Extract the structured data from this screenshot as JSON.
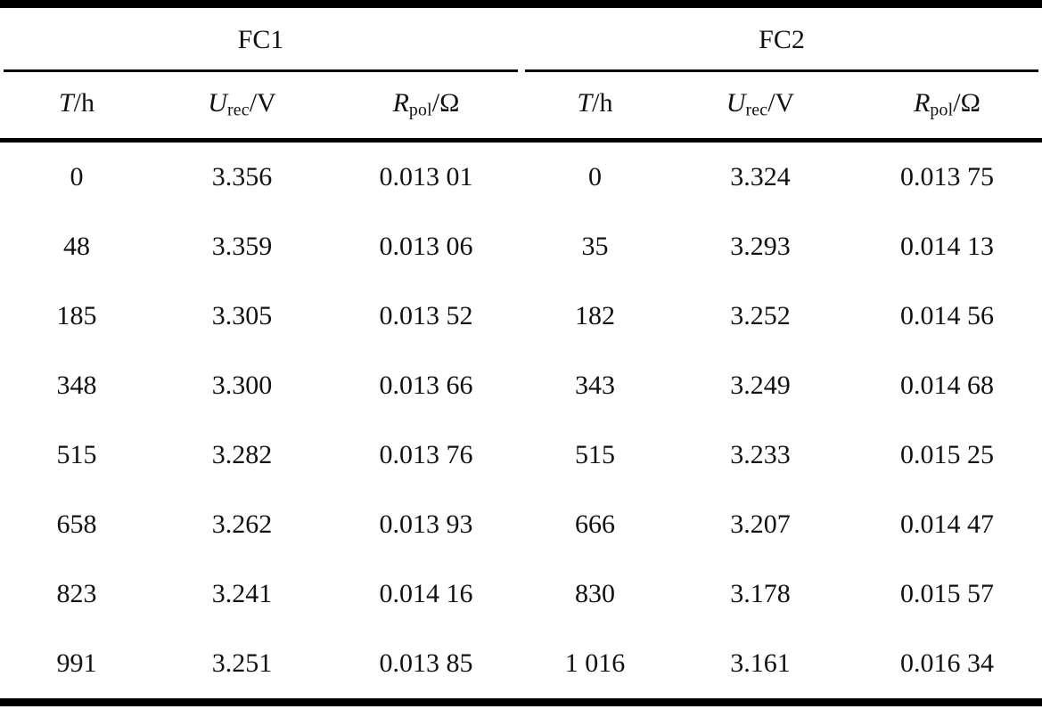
{
  "page": {
    "background": "#ffffff",
    "text_color": "#111111",
    "rule_color": "#000000"
  },
  "table": {
    "group_headers": [
      {
        "label": "FC1"
      },
      {
        "label": "FC2"
      }
    ],
    "column_headers": [
      {
        "symbol": "T",
        "sub": "",
        "unit": "/h"
      },
      {
        "symbol": "U",
        "sub": "rec",
        "unit": "/V"
      },
      {
        "symbol": "R",
        "sub": "pol",
        "unit": "/Ω"
      },
      {
        "symbol": "T",
        "sub": "",
        "unit": "/h"
      },
      {
        "symbol": "U",
        "sub": "rec",
        "unit": "/V"
      },
      {
        "symbol": "R",
        "sub": "pol",
        "unit": "/Ω"
      }
    ],
    "rows": [
      [
        "0",
        "3.356",
        "0.013 01",
        "0",
        "3.324",
        "0.013 75"
      ],
      [
        "48",
        "3.359",
        "0.013 06",
        "35",
        "3.293",
        "0.014 13"
      ],
      [
        "185",
        "3.305",
        "0.013 52",
        "182",
        "3.252",
        "0.014 56"
      ],
      [
        "348",
        "3.300",
        "0.013 66",
        "343",
        "3.249",
        "0.014 68"
      ],
      [
        "515",
        "3.282",
        "0.013 76",
        "515",
        "3.233",
        "0.015 25"
      ],
      [
        "658",
        "3.262",
        "0.013 93",
        "666",
        "3.207",
        "0.014 47"
      ],
      [
        "823",
        "3.241",
        "0.014 16",
        "830",
        "3.178",
        "0.015 57"
      ],
      [
        "991",
        "3.251",
        "0.013 85",
        "1 016",
        "3.161",
        "0.016 34"
      ]
    ]
  },
  "chart_data": {
    "type": "table",
    "groups": [
      {
        "name": "FC1",
        "columns": [
          "T/h",
          "U_rec/V",
          "R_pol/Ω"
        ],
        "T_h": [
          0,
          48,
          185,
          348,
          515,
          658,
          823,
          991
        ],
        "U_rec_V": [
          3.356,
          3.359,
          3.305,
          3.3,
          3.282,
          3.262,
          3.241,
          3.251
        ],
        "R_pol_ohm": [
          0.01301,
          0.01306,
          0.01352,
          0.01366,
          0.01376,
          0.01393,
          0.01416,
          0.01385
        ]
      },
      {
        "name": "FC2",
        "columns": [
          "T/h",
          "U_rec/V",
          "R_pol/Ω"
        ],
        "T_h": [
          0,
          35,
          182,
          343,
          515,
          666,
          830,
          1016
        ],
        "U_rec_V": [
          3.324,
          3.293,
          3.252,
          3.249,
          3.233,
          3.207,
          3.178,
          3.161
        ],
        "R_pol_ohm": [
          0.01375,
          0.01413,
          0.01456,
          0.01468,
          0.01525,
          0.01447,
          0.01557,
          0.01634
        ]
      }
    ]
  }
}
